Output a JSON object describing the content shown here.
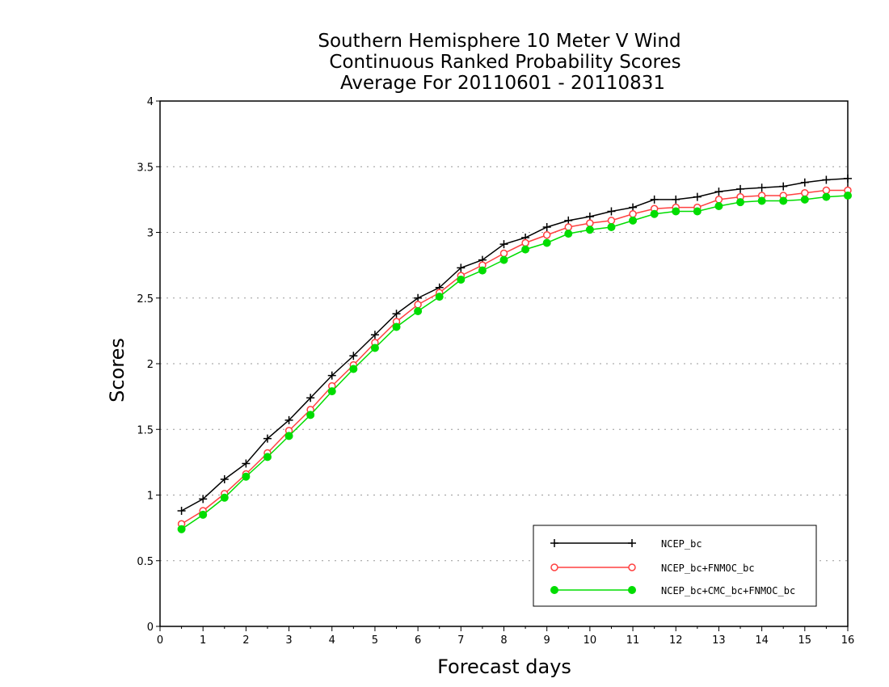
{
  "chart_data": {
    "type": "line",
    "title": [
      "Southern Hemisphere 10 Meter V Wind",
      "Continuous Ranked Probability Scores",
      "Average For 20110601 - 20110831"
    ],
    "xlabel": "Forecast days",
    "ylabel": "Scores",
    "xlim": [
      0,
      16
    ],
    "ylim": [
      0,
      4
    ],
    "xticks": [
      "0",
      "1",
      "2",
      "3",
      "4",
      "5",
      "6",
      "7",
      "8",
      "9",
      "10",
      "11",
      "12",
      "13",
      "14",
      "15",
      "16"
    ],
    "yticks": [
      "0",
      "0.5",
      "1",
      "1.5",
      "2",
      "2.5",
      "3",
      "3.5",
      "4"
    ],
    "grid": "horizontal dotted",
    "legend_position": "bottom-right",
    "x": [
      0.5,
      1,
      1.5,
      2,
      2.5,
      3,
      3.5,
      4,
      4.5,
      5,
      5.5,
      6,
      6.5,
      7,
      7.5,
      8,
      8.5,
      9,
      9.5,
      10,
      10.5,
      11,
      11.5,
      12,
      12.5,
      13,
      13.5,
      14,
      14.5,
      15,
      15.5,
      16
    ],
    "series": [
      {
        "name": "NCEP_bc",
        "color": "#000000",
        "marker": "plus",
        "values": [
          0.88,
          0.97,
          1.12,
          1.24,
          1.43,
          1.57,
          1.74,
          1.91,
          2.06,
          2.22,
          2.38,
          2.5,
          2.58,
          2.73,
          2.79,
          2.91,
          2.96,
          3.04,
          3.09,
          3.12,
          3.16,
          3.19,
          3.25,
          3.25,
          3.27,
          3.31,
          3.33,
          3.34,
          3.35,
          3.38,
          3.4,
          3.41
        ]
      },
      {
        "name": "NCEP_bc+FNMOC_bc",
        "color": "#ff4040",
        "marker": "open-circle",
        "values": [
          0.78,
          0.88,
          1.01,
          1.16,
          1.32,
          1.49,
          1.65,
          1.83,
          1.99,
          2.16,
          2.32,
          2.45,
          2.54,
          2.67,
          2.75,
          2.84,
          2.92,
          2.98,
          3.04,
          3.07,
          3.09,
          3.14,
          3.18,
          3.19,
          3.19,
          3.25,
          3.27,
          3.28,
          3.28,
          3.3,
          3.32,
          3.32
        ]
      },
      {
        "name": "NCEP_bc+CMC_bc+FNMOC_bc",
        "color": "#00dd00",
        "marker": "filled-circle",
        "values": [
          0.74,
          0.85,
          0.98,
          1.14,
          1.29,
          1.45,
          1.61,
          1.79,
          1.96,
          2.12,
          2.28,
          2.4,
          2.51,
          2.64,
          2.71,
          2.79,
          2.87,
          2.92,
          2.99,
          3.02,
          3.04,
          3.09,
          3.14,
          3.16,
          3.16,
          3.2,
          3.23,
          3.24,
          3.24,
          3.25,
          3.27,
          3.28
        ]
      }
    ]
  }
}
